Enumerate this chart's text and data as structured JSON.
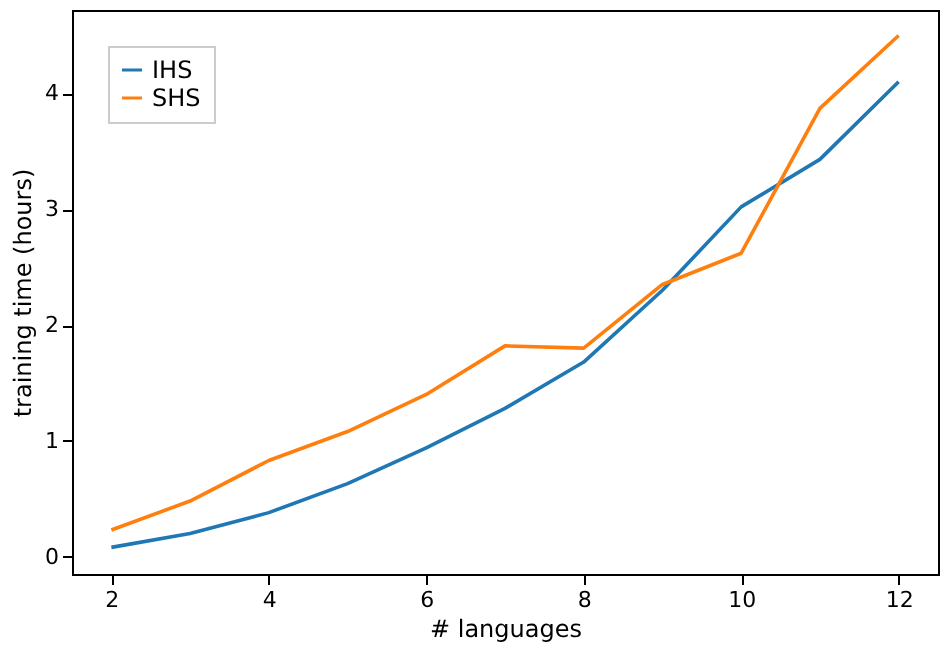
{
  "chart_data": {
    "type": "line",
    "xlabel": "# languages",
    "ylabel": "training time (hours)",
    "x": [
      2,
      3,
      4,
      5,
      6,
      7,
      8,
      9,
      10,
      11,
      12
    ],
    "series": [
      {
        "name": "IHS",
        "color": "#1f77b4",
        "values": [
          0.08,
          0.2,
          0.38,
          0.63,
          0.94,
          1.28,
          1.68,
          2.3,
          3.02,
          3.43,
          4.1
        ]
      },
      {
        "name": "SHS",
        "color": "#ff7f0e",
        "values": [
          0.23,
          0.48,
          0.83,
          1.08,
          1.4,
          1.82,
          1.8,
          2.35,
          2.62,
          3.87,
          4.5
        ]
      }
    ],
    "xlim": [
      1.5,
      12.5
    ],
    "xticks": [
      2,
      4,
      6,
      8,
      10,
      12
    ],
    "ylim": [
      -0.15,
      4.72
    ],
    "yticks": [
      0,
      1,
      2,
      3,
      4
    ],
    "grid": false,
    "legend": "top left",
    "line_style": "solid",
    "marker": "none"
  }
}
